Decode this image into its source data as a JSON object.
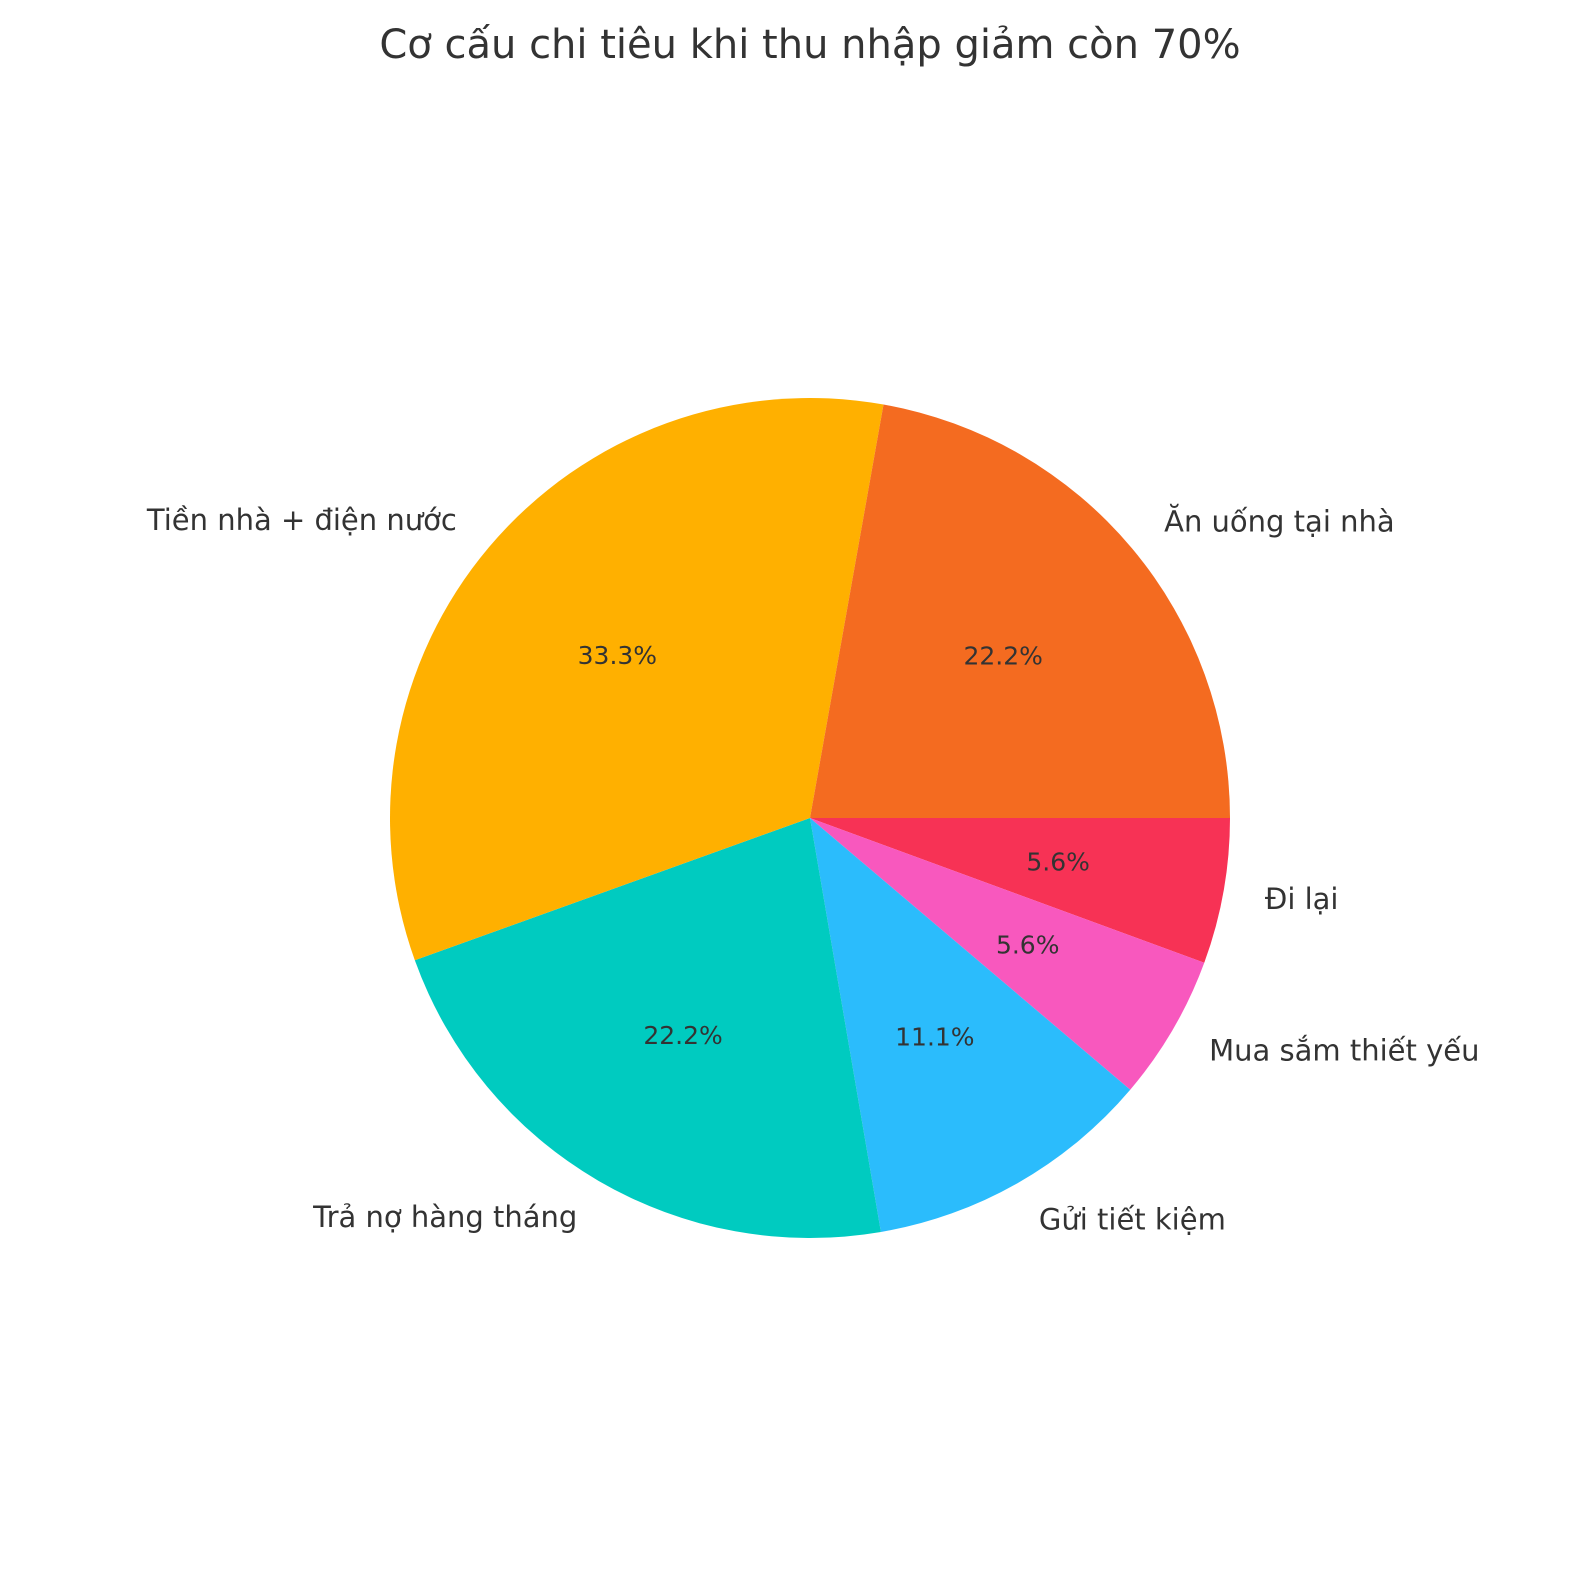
{
  "chart_data": {
    "type": "pie",
    "title": "Cơ cấu chi tiêu khi thu nhập giảm còn 70%",
    "slices": [
      {
        "label": "Đi lại",
        "value": 5.6,
        "pct_label": "5.6%",
        "color": "#f73255"
      },
      {
        "label": "Mua sắm thiết yếu",
        "value": 5.6,
        "pct_label": "5.6%",
        "color": "#f858be"
      },
      {
        "label": "Gửi tiết kiệm",
        "value": 11.1,
        "pct_label": "11.1%",
        "color": "#2bbcfc"
      },
      {
        "label": "Trả nợ hàng tháng",
        "value": 22.2,
        "pct_label": "22.2%",
        "color": "#00cbc0"
      },
      {
        "label": "Tiền nhà + điện nước",
        "value": 33.3,
        "pct_label": "33.3%",
        "color": "#ffb000"
      },
      {
        "label": "Ăn uống tại nhà",
        "value": 22.2,
        "pct_label": "22.2%",
        "color": "#f46b20"
      }
    ]
  }
}
